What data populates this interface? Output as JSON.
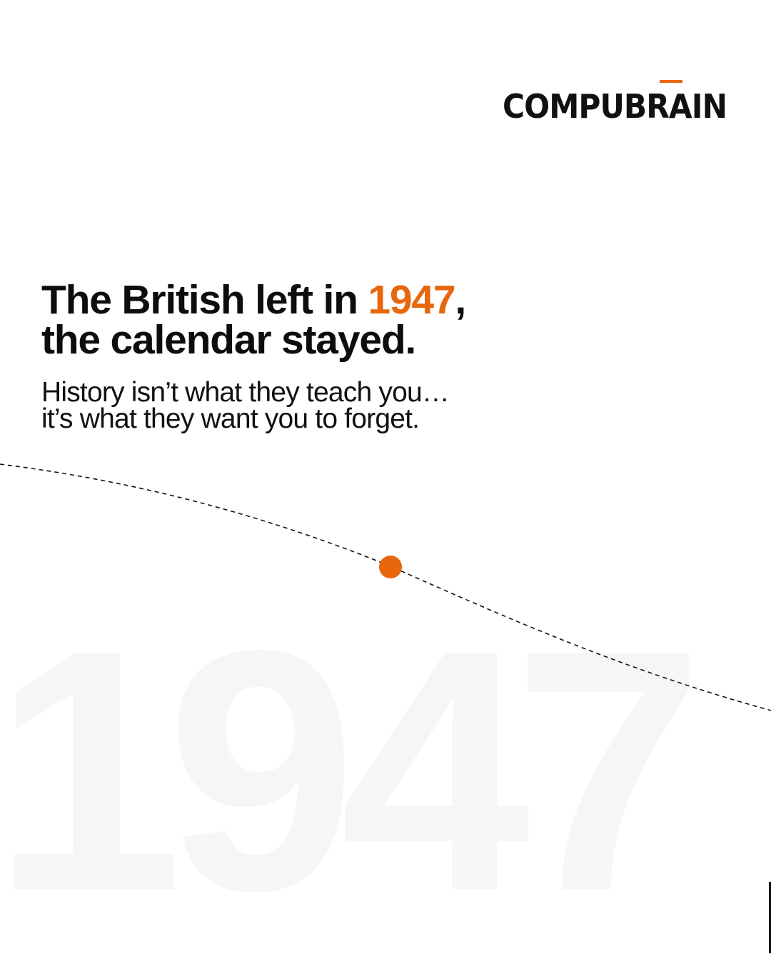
{
  "brand": {
    "logo_text": "COMPUBRAIN"
  },
  "headline": {
    "line1_prefix": "The British left in ",
    "year": "1947",
    "line1_suffix": ",",
    "line2": "the calendar stayed."
  },
  "subtitle": {
    "line1": "History isn’t what they teach you…",
    "line2": "it’s what they want you to forget."
  },
  "background_year": "1947",
  "colors": {
    "accent": "#e8660c",
    "text": "#0d0d0d",
    "watermark": "#f6f6f6"
  }
}
